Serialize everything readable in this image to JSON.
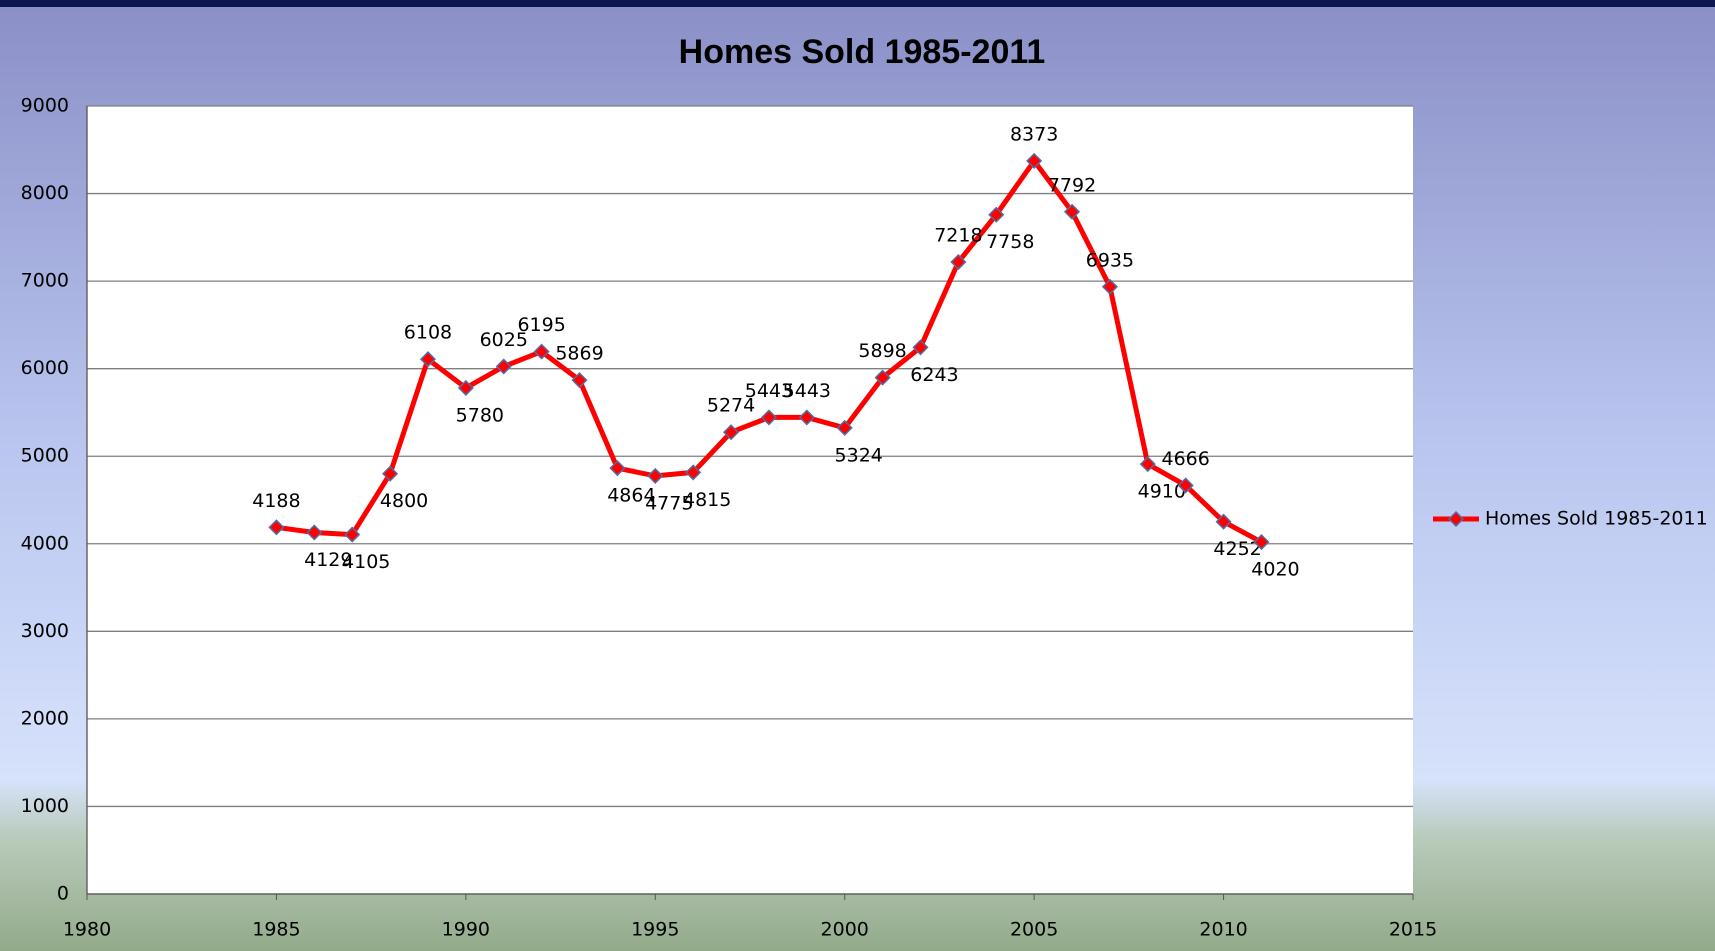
{
  "chart_data": {
    "type": "line",
    "title": "Homes Sold 1985-2011",
    "x": [
      1985,
      1986,
      1987,
      1988,
      1989,
      1990,
      1991,
      1992,
      1993,
      1994,
      1995,
      1996,
      1997,
      1998,
      1999,
      2000,
      2001,
      2002,
      2003,
      2004,
      2005,
      2006,
      2007,
      2008,
      2009,
      2010,
      2011
    ],
    "series": [
      {
        "name": "Homes Sold 1985-2011",
        "color": "#ff0000",
        "values": [
          4188,
          4129,
          4105,
          4800,
          6108,
          5780,
          6025,
          6195,
          5869,
          4864,
          4775,
          4815,
          5274,
          5443,
          5443,
          5324,
          5898,
          6243,
          7218,
          7758,
          8373,
          7792,
          6935,
          4910,
          4666,
          4252,
          4020
        ]
      }
    ],
    "xlim": [
      1980,
      2015
    ],
    "xticks": [
      1980,
      1985,
      1990,
      1995,
      2000,
      2005,
      2010,
      2015
    ],
    "ylim": [
      0,
      9000
    ],
    "yticks": [
      0,
      1000,
      2000,
      3000,
      4000,
      5000,
      6000,
      7000,
      8000,
      9000
    ],
    "grid": true,
    "legend": "right"
  }
}
